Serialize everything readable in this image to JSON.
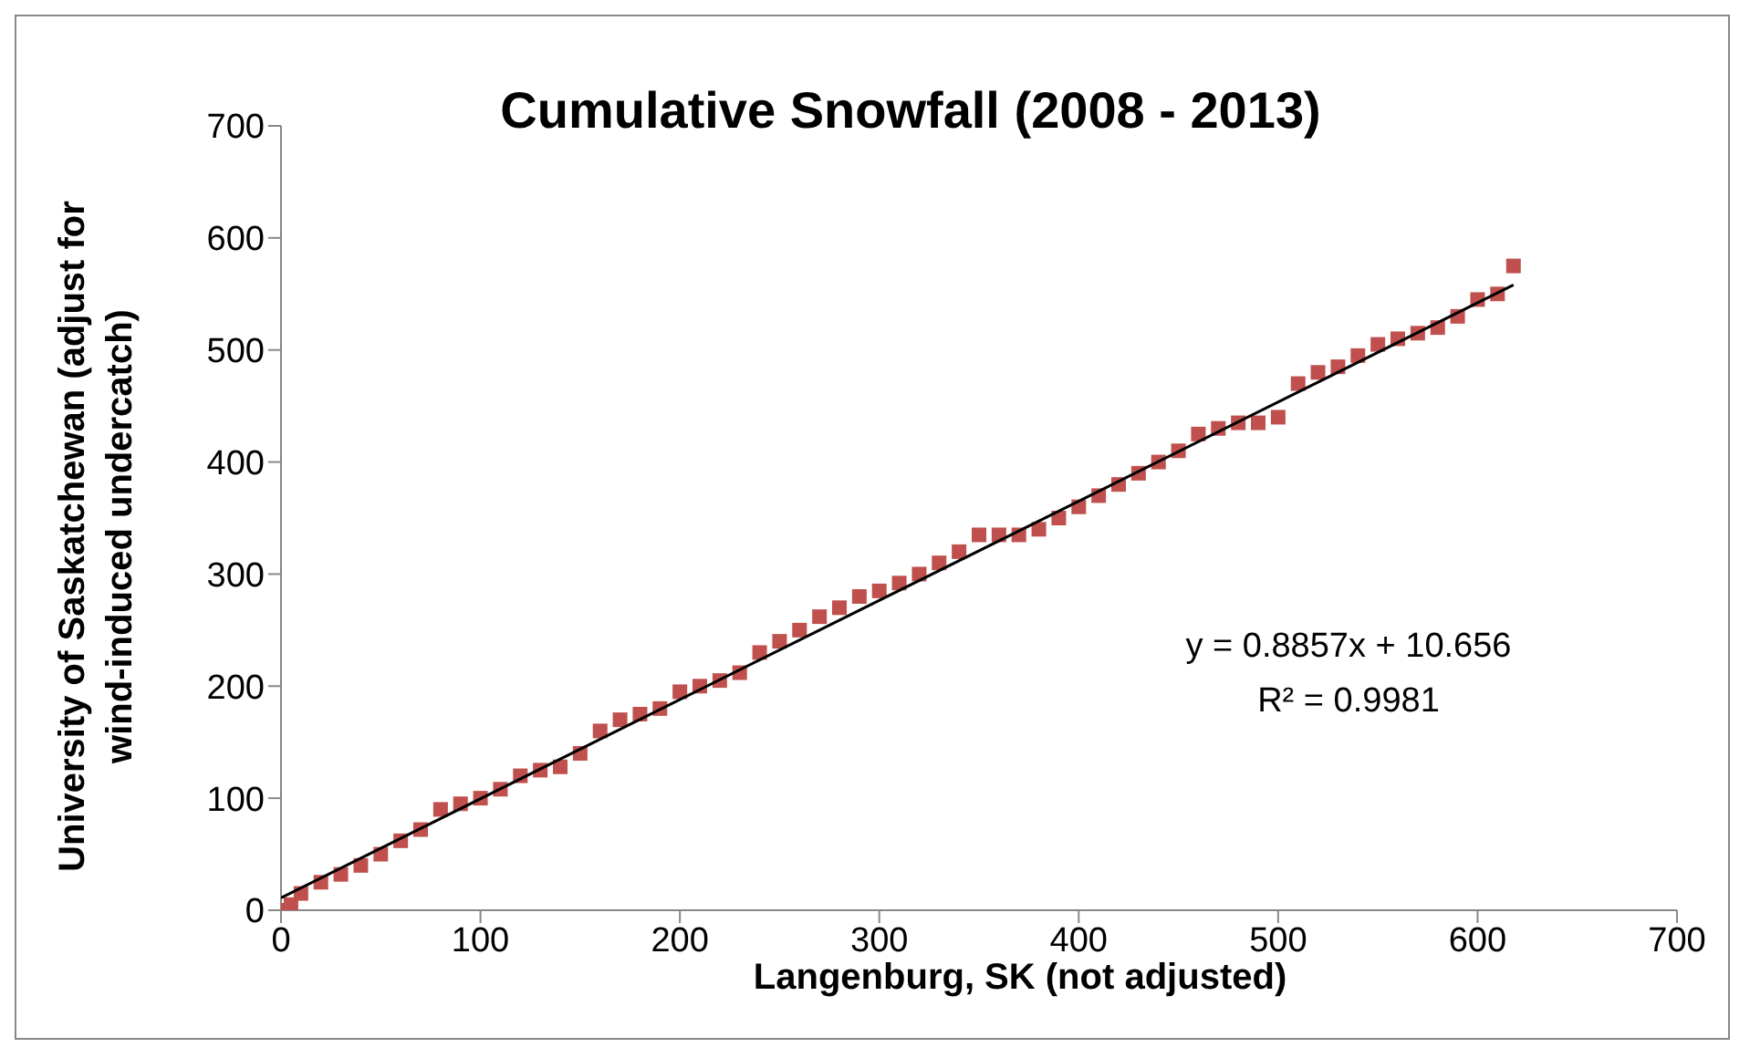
{
  "chart_data": {
    "type": "scatter",
    "title": "Cumulative Snowfall (2008 - 2013)",
    "xlabel": "Langenburg, SK (not adjusted)",
    "ylabel": "University of Saskatchewan (adjust for wind-induced undercatch)",
    "xlim": [
      0,
      700
    ],
    "xticks": [
      0,
      100,
      200,
      300,
      400,
      500,
      600,
      700
    ],
    "ylim": [
      0,
      700
    ],
    "yticks": [
      0,
      100,
      200,
      300,
      400,
      500,
      600,
      700
    ],
    "grid": false,
    "legend": false,
    "marker": "square",
    "annotations": [
      "y = 0.8857x + 10.656",
      "R² = 0.9981"
    ],
    "series": [
      {
        "color": "#c0504d",
        "x": [
          0,
          5,
          10,
          20,
          30,
          40,
          50,
          60,
          70,
          80,
          90,
          100,
          110,
          120,
          130,
          140,
          150,
          160,
          170,
          180,
          190,
          200,
          210,
          220,
          230,
          240,
          250,
          260,
          270,
          280,
          290,
          300,
          310,
          320,
          330,
          340,
          350,
          360,
          370,
          380,
          390,
          400,
          410,
          420,
          430,
          440,
          450,
          460,
          470,
          480,
          490,
          500,
          510,
          520,
          530,
          540,
          550,
          560,
          570,
          580,
          590,
          600,
          610,
          618
        ],
        "values": [
          0,
          5,
          15,
          25,
          32,
          40,
          50,
          62,
          72,
          90,
          95,
          100,
          108,
          120,
          125,
          128,
          140,
          160,
          170,
          175,
          180,
          195,
          200,
          205,
          212,
          230,
          240,
          250,
          262,
          270,
          280,
          285,
          292,
          300,
          310,
          320,
          335,
          335,
          335,
          340,
          350,
          360,
          370,
          380,
          390,
          400,
          410,
          425,
          430,
          435,
          435,
          440,
          470,
          480,
          485,
          495,
          505,
          510,
          515,
          520,
          530,
          545,
          550,
          575
        ]
      },
      {
        "type": "line",
        "marker": "none",
        "color": "#000000",
        "x": [
          0,
          618
        ],
        "values": [
          11,
          558
        ]
      }
    ]
  }
}
